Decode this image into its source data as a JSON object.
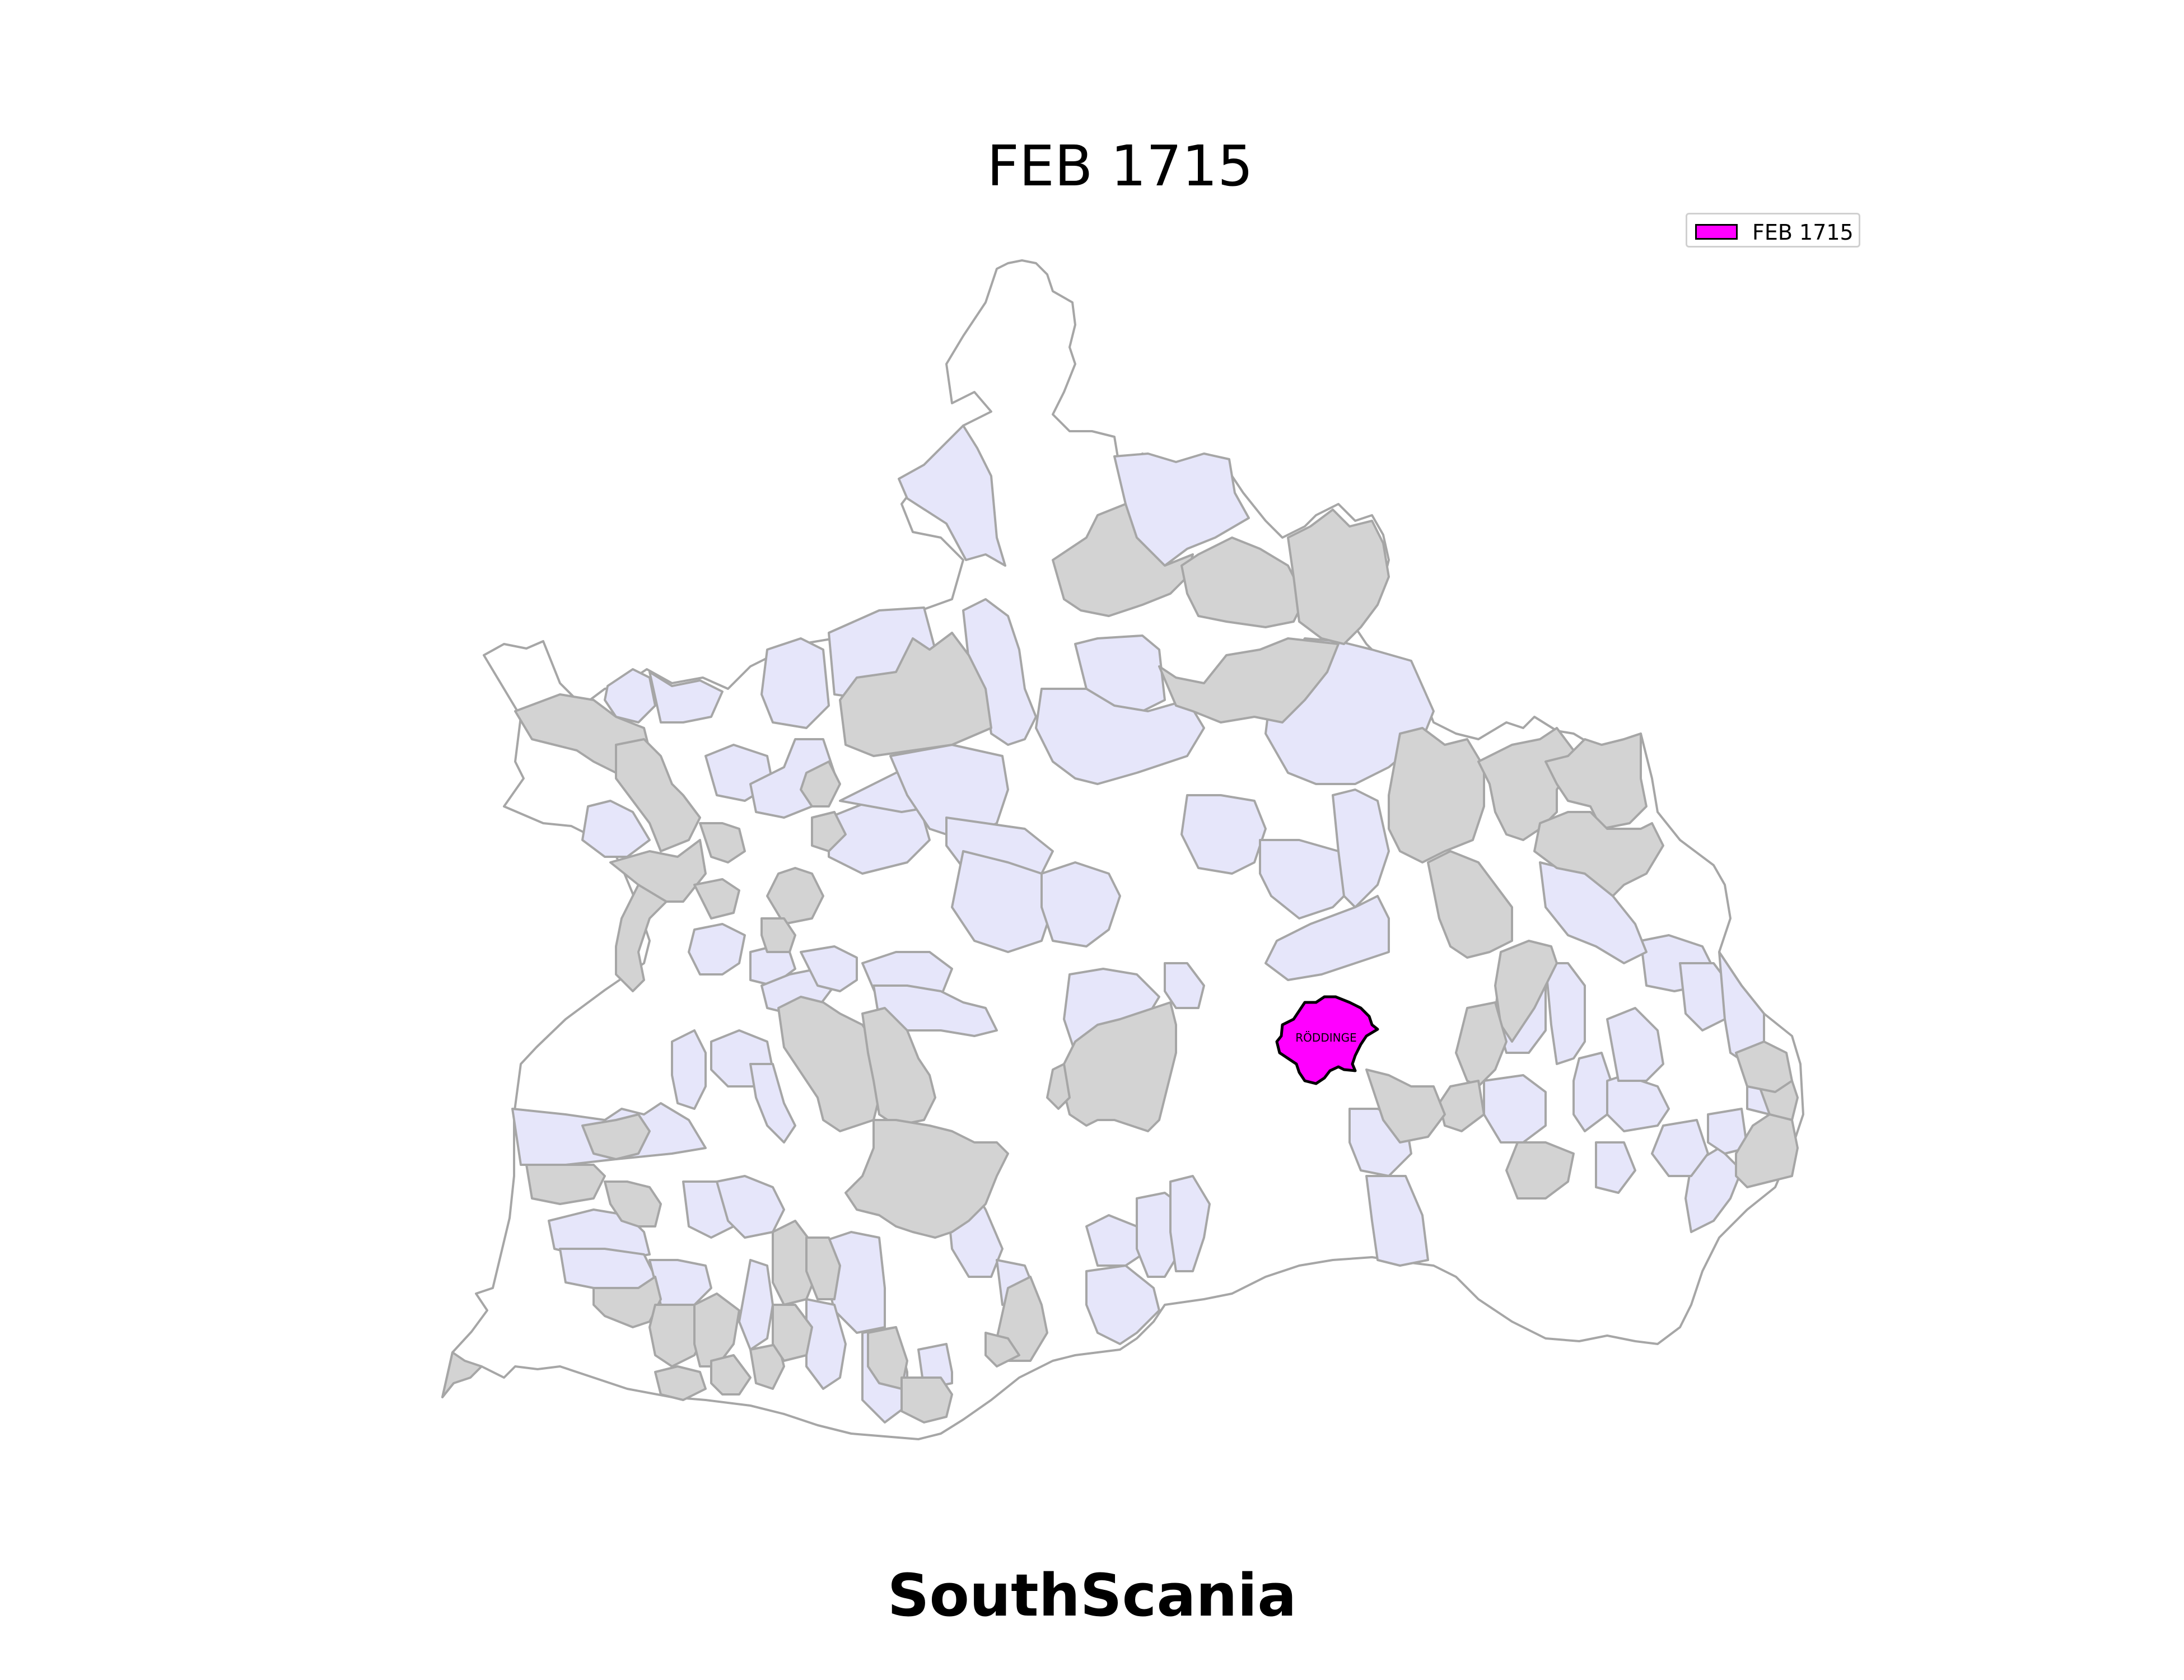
{
  "title": "FEB 1715",
  "caption": "SouthScania",
  "legend": {
    "label": "FEB 1715",
    "color": "#ff00ff"
  },
  "highlight": {
    "parish_label": "RÖDDINGE",
    "color": "#ff00ff"
  },
  "palette": {
    "unaffected": "#ffffff",
    "lavender": "#e6e6fa",
    "grey": "#d3d3d3",
    "border": "#a6a6a6"
  }
}
